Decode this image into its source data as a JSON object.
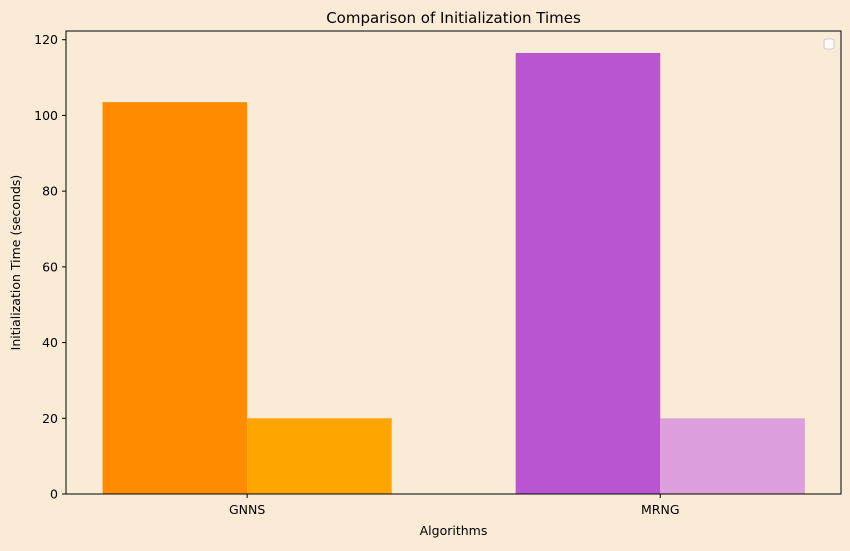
{
  "chart_data": {
    "type": "bar",
    "title": "Comparison of Initialization Times",
    "xlabel": "Algorithms",
    "ylabel": "Initialization Time (seconds)",
    "categories": [
      "GNNS",
      "MRNG"
    ],
    "bars": [
      {
        "category": "GNNS",
        "values": [
          103.5,
          20
        ],
        "colors": [
          "#FF8C00",
          "#FFA500"
        ]
      },
      {
        "category": "MRNG",
        "values": [
          116.5,
          20
        ],
        "colors": [
          "#BA55D3",
          "#DDA0DD"
        ]
      }
    ],
    "ylim": [
      0,
      122.3
    ],
    "yticks": [
      0,
      20,
      40,
      60,
      80,
      100,
      120
    ],
    "grid": false,
    "legend": {
      "placement": "top-right",
      "entries": []
    },
    "background_color": "#FAEBD7",
    "plot_background_color": "#FAEBD7",
    "axis_color": "#000000"
  }
}
